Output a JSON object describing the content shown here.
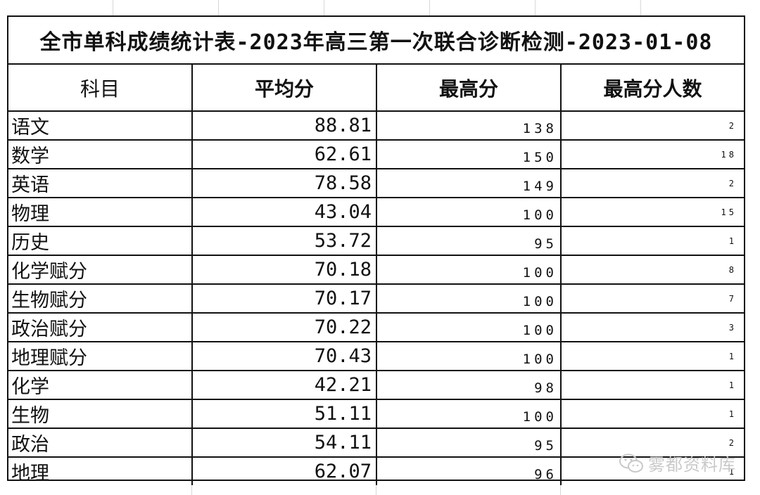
{
  "title": "全市单科成绩统计表-2023年高三第一次联合诊断检测-2023-01-08",
  "headers": [
    "科目",
    "平均分",
    "最高分",
    "最高分人数"
  ],
  "rows": [
    {
      "subject": "语文",
      "avg": "88.81",
      "max": "138",
      "count": "2"
    },
    {
      "subject": "数学",
      "avg": "62.61",
      "max": "150",
      "count": "18"
    },
    {
      "subject": "英语",
      "avg": "78.58",
      "max": "149",
      "count": "2"
    },
    {
      "subject": "物理",
      "avg": "43.04",
      "max": "100",
      "count": "15"
    },
    {
      "subject": "历史",
      "avg": "53.72",
      "max": "95",
      "count": "1"
    },
    {
      "subject": "化学赋分",
      "avg": "70.18",
      "max": "100",
      "count": "8"
    },
    {
      "subject": "生物赋分",
      "avg": "70.17",
      "max": "100",
      "count": "7"
    },
    {
      "subject": "政治赋分",
      "avg": "70.22",
      "max": "100",
      "count": "3"
    },
    {
      "subject": "地理赋分",
      "avg": "70.43",
      "max": "100",
      "count": "1"
    },
    {
      "subject": "化学",
      "avg": "42.21",
      "max": "98",
      "count": "1"
    },
    {
      "subject": "生物",
      "avg": "51.11",
      "max": "100",
      "count": "1"
    },
    {
      "subject": "政治",
      "avg": "54.11",
      "max": "95",
      "count": "2"
    },
    {
      "subject": "地理",
      "avg": "62.07",
      "max": "96",
      "count": "1"
    }
  ],
  "watermark": {
    "text": "雾都资料库",
    "icon": "wechat-icon"
  }
}
